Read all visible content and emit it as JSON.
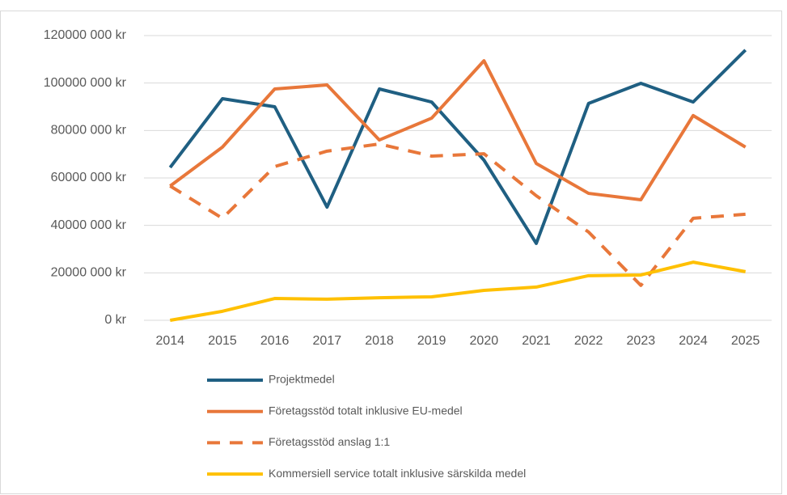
{
  "chart_data": {
    "type": "line",
    "categories": [
      "2014",
      "2015",
      "2016",
      "2017",
      "2018",
      "2019",
      "2020",
      "2021",
      "2022",
      "2023",
      "2024",
      "2025"
    ],
    "series": [
      {
        "name": "Projektmedel",
        "color": "#1f5f82",
        "values": [
          64400000,
          93400000,
          90000000,
          47700000,
          97500000,
          92000000,
          67500000,
          32400000,
          91400000,
          99900000,
          92000000,
          113900000
        ]
      },
      {
        "name": "Företagsstöd totalt inklusive EU-medel",
        "color": "#e8773a",
        "values": [
          56600000,
          73000000,
          97500000,
          99200000,
          76000000,
          85200000,
          109400000,
          66100000,
          53500000,
          50800000,
          86300000,
          73000000
        ]
      },
      {
        "name": "Företagsstöd anslag 1:1",
        "color": "#e8773a",
        "dashed": true,
        "values": [
          56600000,
          43000000,
          64800000,
          71300000,
          74300000,
          69200000,
          70200000,
          52500000,
          37200000,
          14700000,
          43000000,
          44700000
        ]
      },
      {
        "name": "Kommersiell service totalt inklusive särskilda medel",
        "color": "#ffc000",
        "values": [
          0,
          3800000,
          9200000,
          8900000,
          9500000,
          9900000,
          12600000,
          14000000,
          18800000,
          19100000,
          24500000,
          20500000
        ]
      }
    ],
    "ylim": [
      0,
      120000000
    ],
    "yticks": [
      {
        "value": 0,
        "label": "0 kr"
      },
      {
        "value": 20000000,
        "label": "20000 000 kr"
      },
      {
        "value": 40000000,
        "label": "40000 000 kr"
      },
      {
        "value": 60000000,
        "label": "60000 000 kr"
      },
      {
        "value": 80000000,
        "label": "80000 000 kr"
      },
      {
        "value": 100000000,
        "label": "100000 000 kr"
      },
      {
        "value": 120000000,
        "label": "120000 000 kr"
      }
    ],
    "grid": true
  }
}
